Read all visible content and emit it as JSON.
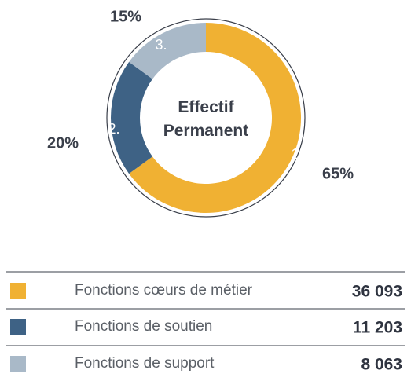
{
  "chart_data": {
    "type": "donut",
    "title": "Effectif Permanent",
    "categories": [
      "Fonctions cœurs de métier",
      "Fonctions de soutien",
      "Fonctions de support"
    ],
    "values": [
      65,
      20,
      15
    ],
    "value_labels": [
      "65%",
      "20%",
      "15%"
    ],
    "segment_labels": [
      "1.",
      "2.",
      "3."
    ],
    "colors": [
      "#f0b133",
      "#3e6285",
      "#a9b9c8"
    ],
    "counts": [
      36093,
      11203,
      8063
    ],
    "count_labels": [
      "36 093",
      "11 203",
      "8 063"
    ]
  }
}
